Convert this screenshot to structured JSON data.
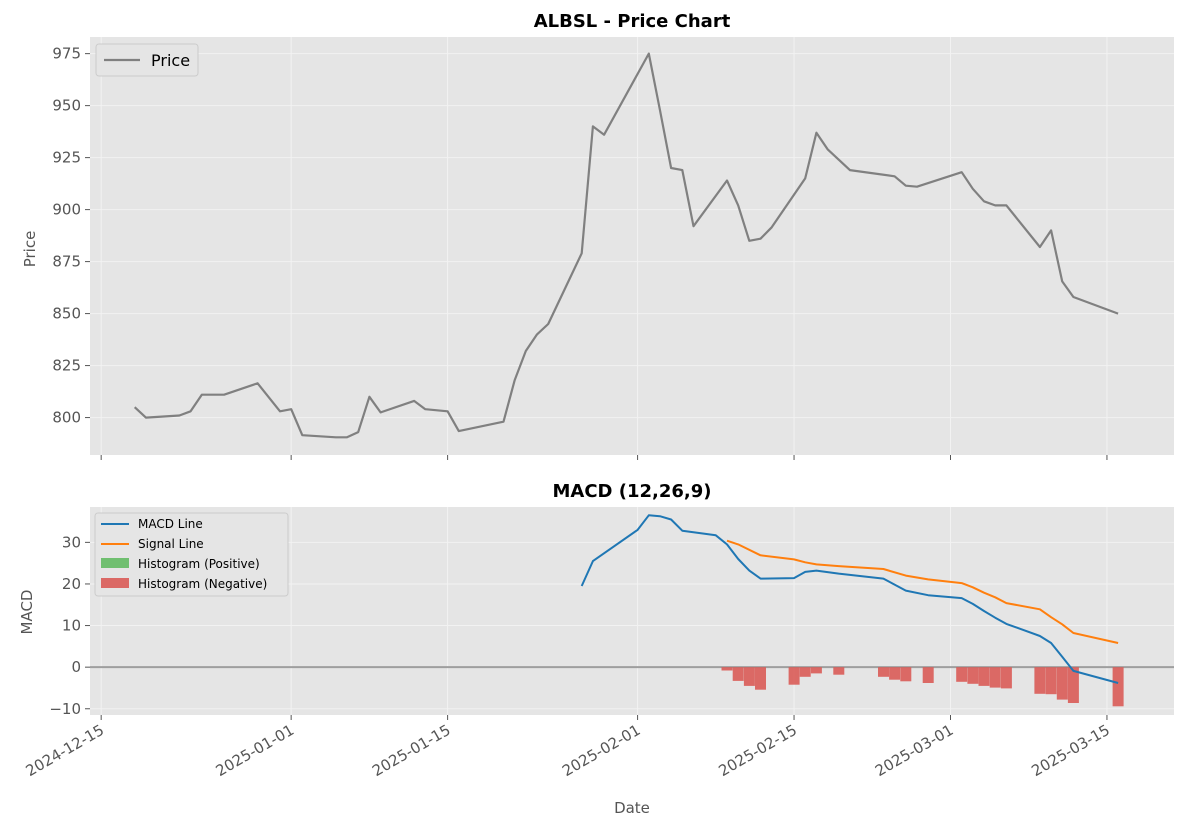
{
  "chart_data": [
    {
      "type": "line",
      "title": "ALBSL - Price Chart",
      "xlabel": "",
      "ylabel": "Price",
      "ylim": [
        782,
        983
      ],
      "yticks": [
        800,
        825,
        850,
        875,
        900,
        925,
        950,
        975
      ],
      "grid": true,
      "legend": "top-left",
      "series": [
        {
          "name": "Price",
          "color": "#808080",
          "points": [
            [
              "2024-12-18",
              805
            ],
            [
              "2024-12-19",
              800
            ],
            [
              "2024-12-22",
              801
            ],
            [
              "2024-12-23",
              803
            ],
            [
              "2024-12-24",
              811
            ],
            [
              "2024-12-26",
              811
            ],
            [
              "2024-12-29",
              816.5
            ],
            [
              "2024-12-31",
              803
            ],
            [
              "2025-01-01",
              804
            ],
            [
              "2025-01-02",
              791.5
            ],
            [
              "2025-01-05",
              790.5
            ],
            [
              "2025-01-06",
              790.5
            ],
            [
              "2025-01-07",
              793
            ],
            [
              "2025-01-08",
              810
            ],
            [
              "2025-01-09",
              802.5
            ],
            [
              "2025-01-12",
              808
            ],
            [
              "2025-01-13",
              804
            ],
            [
              "2025-01-15",
              803
            ],
            [
              "2025-01-16",
              793.5
            ],
            [
              "2025-01-20",
              798
            ],
            [
              "2025-01-21",
              818
            ],
            [
              "2025-01-22",
              832
            ],
            [
              "2025-01-23",
              840
            ],
            [
              "2025-01-24",
              845
            ],
            [
              "2025-01-27",
              879
            ],
            [
              "2025-01-28",
              940
            ],
            [
              "2025-01-29",
              936
            ],
            [
              "2025-02-02",
              975
            ],
            [
              "2025-02-03",
              948
            ],
            [
              "2025-02-04",
              920
            ],
            [
              "2025-02-05",
              919
            ],
            [
              "2025-02-06",
              892
            ],
            [
              "2025-02-09",
              914
            ],
            [
              "2025-02-10",
              902
            ],
            [
              "2025-02-11",
              885
            ],
            [
              "2025-02-12",
              886
            ],
            [
              "2025-02-13",
              891.5
            ],
            [
              "2025-02-16",
              915
            ],
            [
              "2025-02-17",
              937
            ],
            [
              "2025-02-18",
              929
            ],
            [
              "2025-02-20",
              919
            ],
            [
              "2025-02-24",
              916
            ],
            [
              "2025-02-25",
              911.5
            ],
            [
              "2025-02-26",
              911
            ],
            [
              "2025-03-02",
              918
            ],
            [
              "2025-03-03",
              910
            ],
            [
              "2025-03-04",
              904
            ],
            [
              "2025-03-05",
              902
            ],
            [
              "2025-03-06",
              902
            ],
            [
              "2025-03-09",
              882
            ],
            [
              "2025-03-10",
              890
            ],
            [
              "2025-03-11",
              865.5
            ],
            [
              "2025-03-12",
              858
            ],
            [
              "2025-03-16",
              850
            ]
          ]
        }
      ]
    },
    {
      "type": "line",
      "title": "MACD (12,26,9)",
      "xlabel": "Date",
      "ylabel": "MACD",
      "ylim": [
        -11.5,
        38.5
      ],
      "yticks": [
        -10,
        0,
        10,
        20,
        30
      ],
      "grid": true,
      "legend": "top-left",
      "zero_line": 0,
      "series": [
        {
          "name": "MACD Line",
          "color": "#1f77b4",
          "points": [
            [
              "2025-01-27",
              19.5
            ],
            [
              "2025-01-28",
              25.5
            ],
            [
              "2025-02-01",
              33
            ],
            [
              "2025-02-02",
              36.5
            ],
            [
              "2025-02-03",
              36.3
            ],
            [
              "2025-02-04",
              35.5
            ],
            [
              "2025-02-05",
              32.8
            ],
            [
              "2025-02-08",
              31.7
            ],
            [
              "2025-02-09",
              29.5
            ],
            [
              "2025-02-10",
              26
            ],
            [
              "2025-02-11",
              23.2
            ],
            [
              "2025-02-12",
              21.3
            ],
            [
              "2025-02-15",
              21.4
            ],
            [
              "2025-02-16",
              22.9
            ],
            [
              "2025-02-17",
              23.2
            ],
            [
              "2025-02-19",
              22.5
            ],
            [
              "2025-02-23",
              21.3
            ],
            [
              "2025-02-25",
              18.4
            ],
            [
              "2025-02-27",
              17.3
            ],
            [
              "2025-03-02",
              16.6
            ],
            [
              "2025-03-03",
              15.2
            ],
            [
              "2025-03-04",
              13.5
            ],
            [
              "2025-03-05",
              11.9
            ],
            [
              "2025-03-06",
              10.4
            ],
            [
              "2025-03-09",
              7.5
            ],
            [
              "2025-03-10",
              5.8
            ],
            [
              "2025-03-11",
              2.5
            ],
            [
              "2025-03-12",
              -0.9
            ],
            [
              "2025-03-16",
              -3.8
            ]
          ]
        },
        {
          "name": "Signal Line",
          "color": "#ff7f0e",
          "points": [
            [
              "2025-02-09",
              30.4
            ],
            [
              "2025-02-10",
              29.5
            ],
            [
              "2025-02-12",
              26.9
            ],
            [
              "2025-02-15",
              25.9
            ],
            [
              "2025-02-16",
              25.2
            ],
            [
              "2025-02-17",
              24.7
            ],
            [
              "2025-02-19",
              24.3
            ],
            [
              "2025-02-23",
              23.6
            ],
            [
              "2025-02-25",
              22
            ],
            [
              "2025-02-27",
              21.1
            ],
            [
              "2025-03-02",
              20.2
            ],
            [
              "2025-03-03",
              19.2
            ],
            [
              "2025-03-04",
              17.9
            ],
            [
              "2025-03-05",
              16.8
            ],
            [
              "2025-03-06",
              15.4
            ],
            [
              "2025-03-09",
              13.9
            ],
            [
              "2025-03-10",
              12
            ],
            [
              "2025-03-11",
              10.3
            ],
            [
              "2025-03-12",
              8.2
            ],
            [
              "2025-03-16",
              5.8
            ]
          ]
        }
      ],
      "histogram": {
        "positive_name": "Histogram (Positive)",
        "negative_name": "Histogram (Negative)",
        "positive_color": "#5cb85c",
        "negative_color": "#d9534f",
        "bars": [
          [
            "2025-02-09",
            -0.8
          ],
          [
            "2025-02-10",
            -3.3
          ],
          [
            "2025-02-11",
            -4.5
          ],
          [
            "2025-02-12",
            -5.4
          ],
          [
            "2025-02-15",
            -4.2
          ],
          [
            "2025-02-16",
            -2.3
          ],
          [
            "2025-02-17",
            -1.5
          ],
          [
            "2025-02-19",
            -1.8
          ],
          [
            "2025-02-23",
            -2.3
          ],
          [
            "2025-02-24",
            -3
          ],
          [
            "2025-02-25",
            -3.4
          ],
          [
            "2025-02-27",
            -3.8
          ],
          [
            "2025-03-02",
            -3.5
          ],
          [
            "2025-03-03",
            -4
          ],
          [
            "2025-03-04",
            -4.5
          ],
          [
            "2025-03-05",
            -4.9
          ],
          [
            "2025-03-06",
            -5.1
          ],
          [
            "2025-03-09",
            -6.4
          ],
          [
            "2025-03-10",
            -6.5
          ],
          [
            "2025-03-11",
            -7.8
          ],
          [
            "2025-03-12",
            -8.6
          ],
          [
            "2025-03-16",
            -9.4
          ]
        ]
      }
    }
  ],
  "x_axis": {
    "range": [
      "2024-12-14",
      "2025-03-21"
    ],
    "ticks": [
      "2024-12-15",
      "2025-01-01",
      "2025-01-15",
      "2025-02-01",
      "2025-02-15",
      "2025-03-01",
      "2025-03-15"
    ]
  },
  "colors": {
    "plot_background": "#e5e5e5",
    "grid": "#f2f2f2",
    "zero_line": "#9e9e9e"
  }
}
